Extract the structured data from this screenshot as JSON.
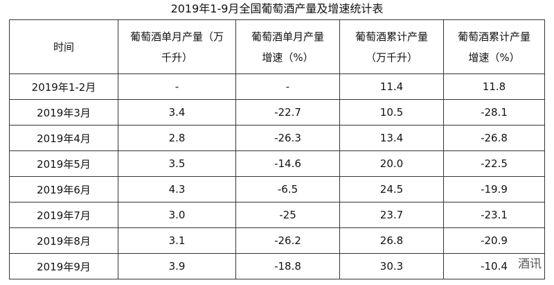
{
  "title": "2019年1-9月全国葡萄酒产量及增速统计表",
  "table": {
    "header": [
      [
        "时间"
      ],
      [
        "葡萄酒单月产量（万",
        "千升）"
      ],
      [
        "葡萄酒单月产量",
        "增速（%）"
      ],
      [
        "葡萄酒累计产量",
        "（万千升）"
      ],
      [
        "葡萄酒累计产量",
        "增速（%）"
      ]
    ],
    "rows": [
      [
        "2019年1-2月",
        "-",
        "-",
        "11.4",
        "11.8"
      ],
      [
        "2019年3月",
        "3.4",
        "-22.7",
        "10.5",
        "-28.1"
      ],
      [
        "2019年4月",
        "2.8",
        "-26.3",
        "13.4",
        "-26.8"
      ],
      [
        "2019年5月",
        "3.5",
        "-14.6",
        "20.0",
        "-22.5"
      ],
      [
        "2019年6月",
        "4.3",
        "-6.5",
        "24.5",
        "-19.9"
      ],
      [
        "2019年7月",
        "3.0",
        "-25",
        "23.7",
        "-23.1"
      ],
      [
        "2019年8月",
        "3.1",
        "-26.2",
        "26.8",
        "-20.9"
      ],
      [
        "2019年9月",
        "3.9",
        "-18.8",
        "30.3",
        "-10.4"
      ]
    ]
  },
  "watermark": "酒讯"
}
